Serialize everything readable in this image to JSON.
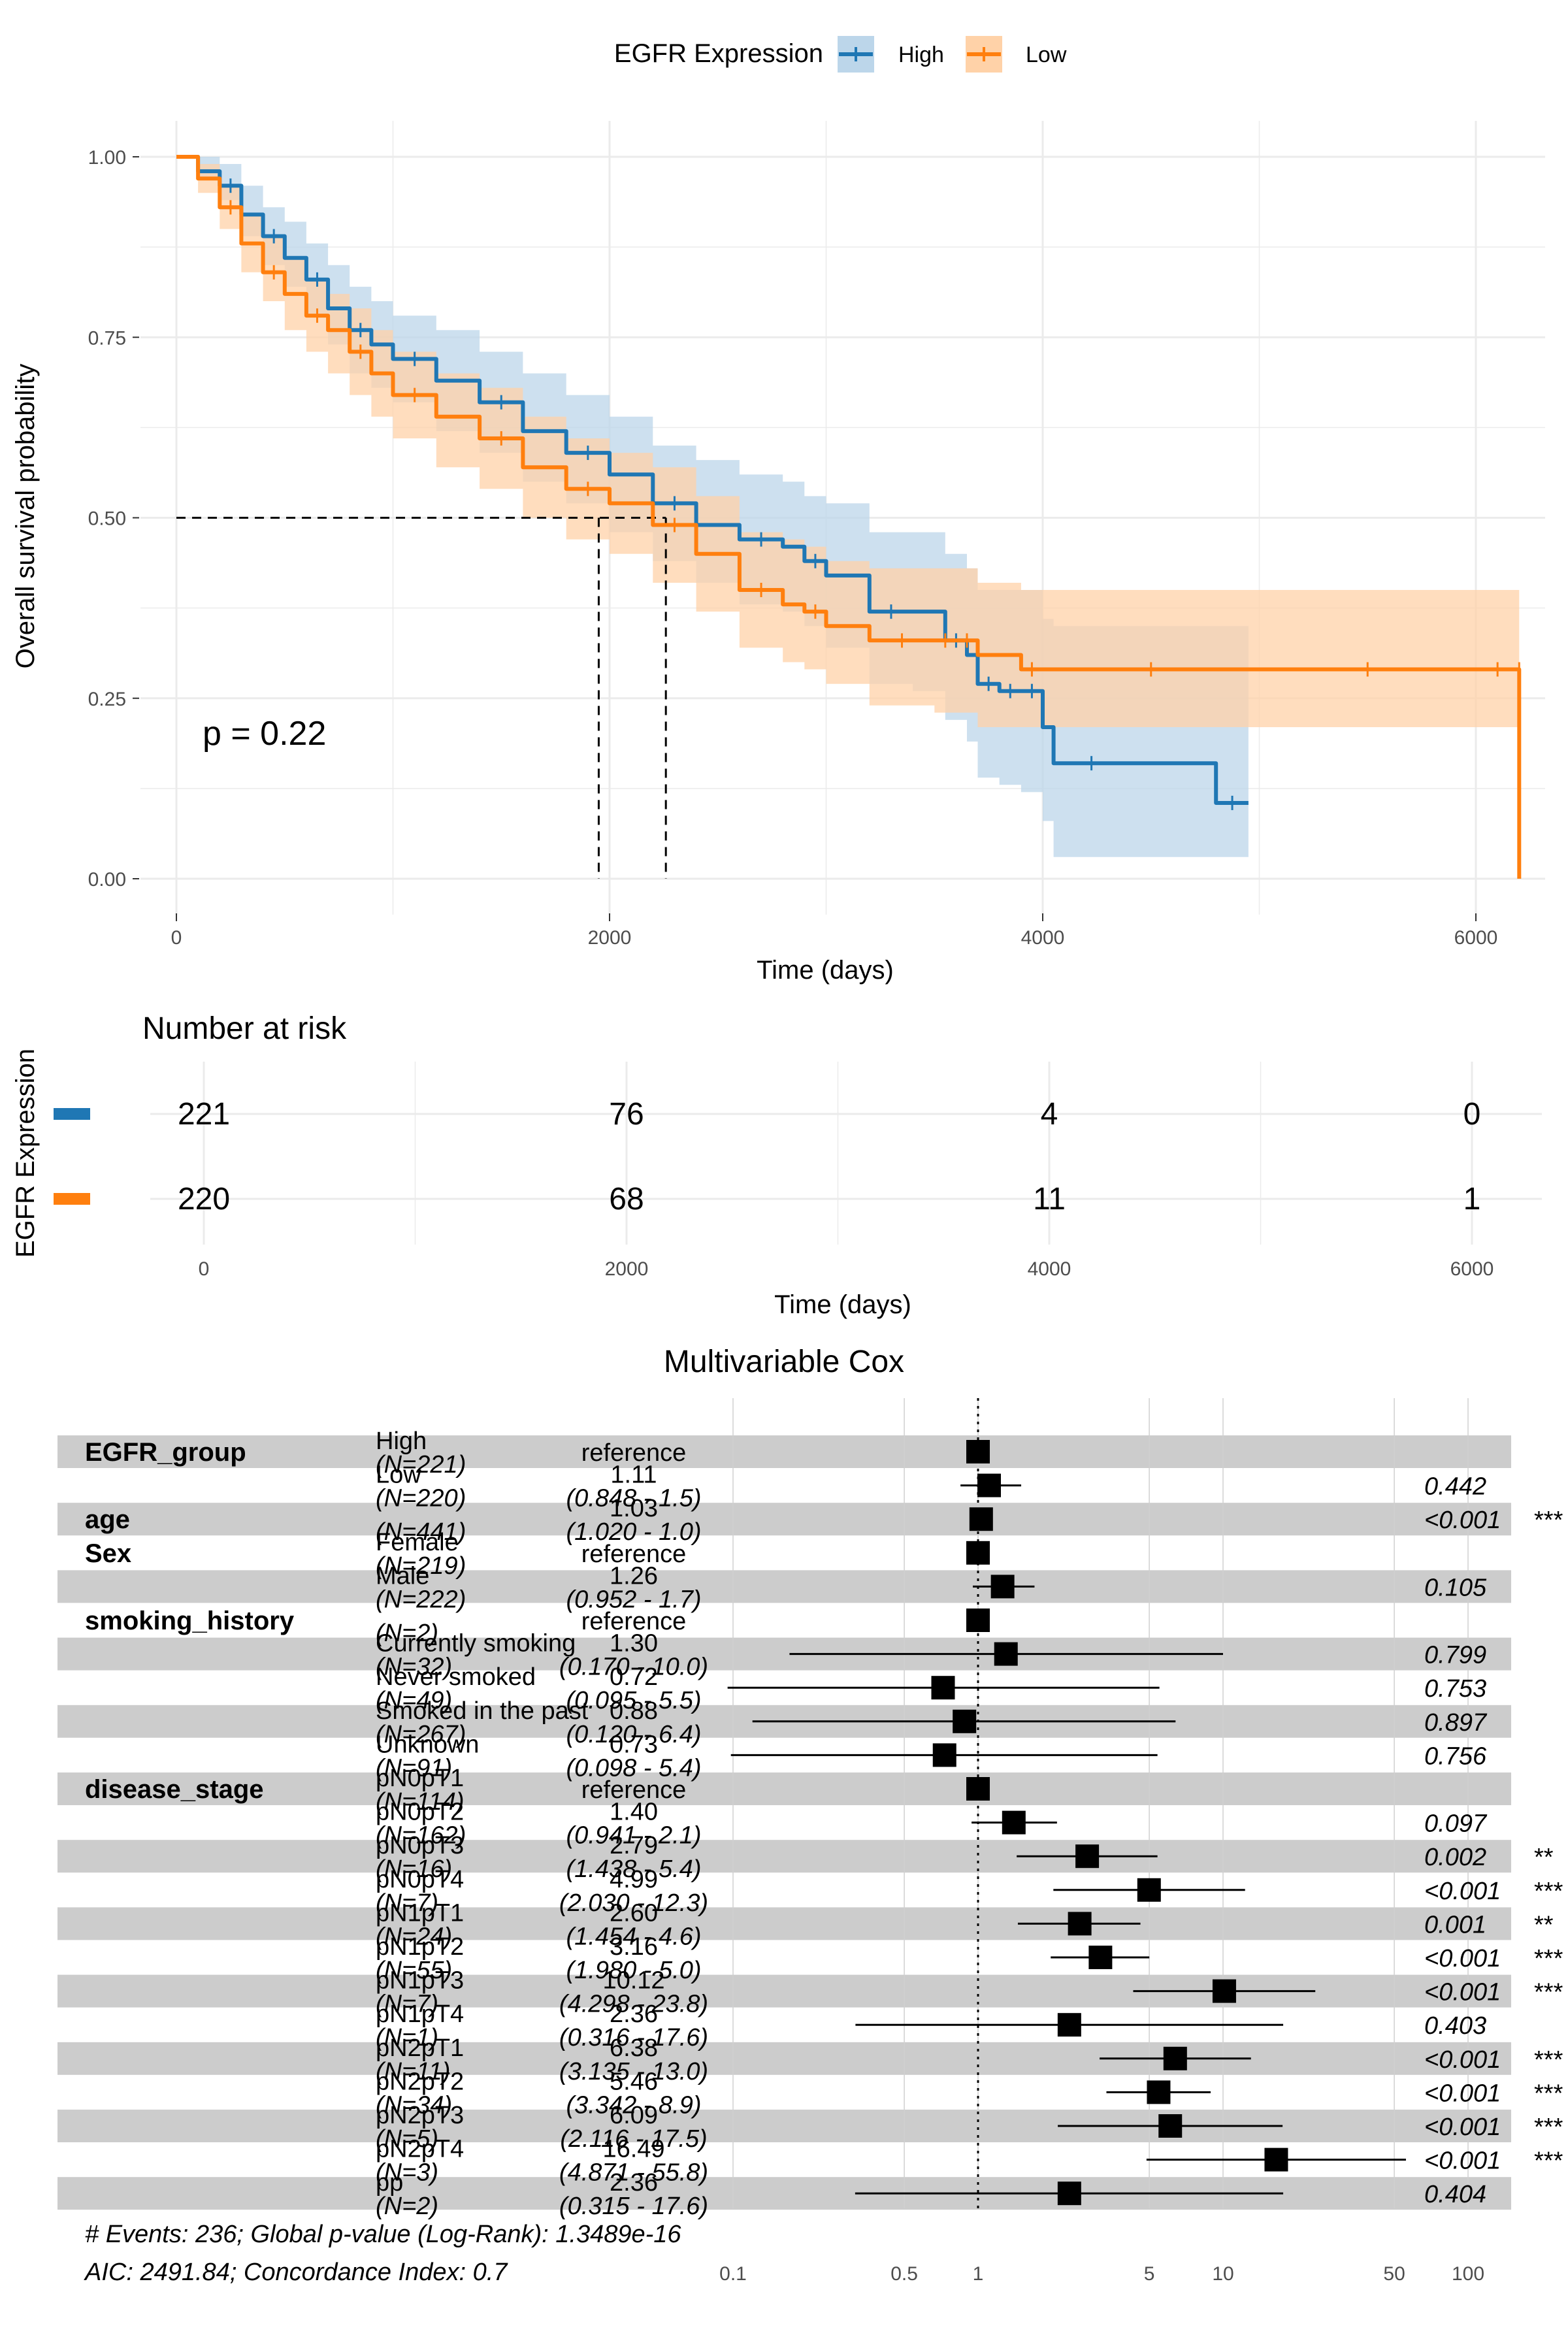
{
  "colors": {
    "high": "#1f77b4",
    "low": "#ff7f0e",
    "high_band": "#bcd6ea",
    "low_band": "#ffd2a8",
    "stripe": "#cccccc"
  },
  "km": {
    "legend": {
      "title": "EGFR Expression",
      "items": [
        "High",
        "Low"
      ]
    },
    "ylabel": "Overall survival probability",
    "xlabel": "Time (days)",
    "pvalue": "p = 0.22",
    "x_ticks": [
      "0",
      "2000",
      "4000",
      "6000"
    ],
    "y_ticks": [
      "0.00",
      "0.25",
      "0.50",
      "0.75",
      "1.00"
    ]
  },
  "risk": {
    "title": "Number at risk",
    "ylabel": "EGFR Expression",
    "xlabel": "Time (days)",
    "x_ticks": [
      "0",
      "2000",
      "4000",
      "6000"
    ],
    "rows": [
      {
        "group": "High",
        "counts": [
          "221",
          "76",
          "4",
          "0"
        ]
      },
      {
        "group": "Low",
        "counts": [
          "220",
          "68",
          "11",
          "1"
        ]
      }
    ]
  },
  "forest": {
    "title": "Multivariable Cox",
    "x_ticks": [
      "0.1",
      "0.5",
      "1",
      "5",
      "10",
      "50",
      "100"
    ],
    "footer1": "# Events: 236; Global p-value (Log-Rank): 1.3489e-16",
    "footer2": "AIC: 2491.84; Concordance Index: 0.7"
  },
  "chart_data": [
    {
      "type": "line",
      "title": "",
      "xlabel": "Time (days)",
      "ylabel": "Overall survival probability",
      "xlim": [
        0,
        6200
      ],
      "ylim": [
        0,
        1
      ],
      "grid": true,
      "legend": "top",
      "annotation": "p = 0.22",
      "median_survival": {
        "High": 2260,
        "Low": 1950
      },
      "series": [
        {
          "name": "High",
          "x": [
            0,
            100,
            200,
            300,
            400,
            500,
            600,
            700,
            800,
            900,
            1000,
            1200,
            1400,
            1600,
            1800,
            2000,
            2200,
            2400,
            2600,
            2800,
            2900,
            3000,
            3200,
            3400,
            3550,
            3650,
            3700,
            3800,
            3900,
            4000,
            4050,
            4400,
            4800,
            4950
          ],
          "y": [
            1.0,
            0.98,
            0.96,
            0.92,
            0.89,
            0.86,
            0.83,
            0.79,
            0.76,
            0.74,
            0.72,
            0.69,
            0.66,
            0.62,
            0.59,
            0.56,
            0.52,
            0.49,
            0.47,
            0.46,
            0.44,
            0.42,
            0.37,
            0.37,
            0.33,
            0.31,
            0.27,
            0.26,
            0.26,
            0.21,
            0.16,
            0.16,
            0.105,
            0.105
          ],
          "ci_low": [
            1.0,
            0.97,
            0.94,
            0.89,
            0.85,
            0.82,
            0.78,
            0.74,
            0.7,
            0.68,
            0.66,
            0.62,
            0.59,
            0.55,
            0.52,
            0.48,
            0.44,
            0.41,
            0.38,
            0.37,
            0.35,
            0.32,
            0.27,
            0.26,
            0.22,
            0.19,
            0.14,
            0.13,
            0.12,
            0.08,
            0.03,
            0.03,
            0.03,
            0.03
          ],
          "ci_high": [
            1.0,
            1.0,
            0.99,
            0.96,
            0.93,
            0.91,
            0.88,
            0.85,
            0.82,
            0.8,
            0.78,
            0.76,
            0.73,
            0.7,
            0.67,
            0.64,
            0.6,
            0.58,
            0.56,
            0.55,
            0.53,
            0.52,
            0.48,
            0.48,
            0.45,
            0.43,
            0.4,
            0.4,
            0.4,
            0.36,
            0.35,
            0.35,
            0.35,
            0.35
          ]
        },
        {
          "name": "Low",
          "x": [
            0,
            100,
            200,
            300,
            400,
            500,
            600,
            700,
            800,
            900,
            1000,
            1200,
            1400,
            1600,
            1800,
            2000,
            2200,
            2400,
            2600,
            2800,
            2900,
            3000,
            3200,
            3500,
            3600,
            3700,
            3900,
            4000,
            5000,
            6000,
            6200,
            6200
          ],
          "y": [
            1.0,
            0.97,
            0.93,
            0.88,
            0.84,
            0.81,
            0.78,
            0.76,
            0.73,
            0.7,
            0.67,
            0.64,
            0.61,
            0.57,
            0.54,
            0.52,
            0.49,
            0.45,
            0.4,
            0.38,
            0.37,
            0.35,
            0.33,
            0.33,
            0.33,
            0.31,
            0.29,
            0.29,
            0.29,
            0.29,
            0.29,
            0.0
          ],
          "ci_low": [
            1.0,
            0.95,
            0.9,
            0.84,
            0.8,
            0.76,
            0.73,
            0.7,
            0.67,
            0.64,
            0.61,
            0.57,
            0.54,
            0.5,
            0.47,
            0.45,
            0.41,
            0.37,
            0.32,
            0.3,
            0.29,
            0.27,
            0.24,
            0.23,
            0.23,
            0.21,
            0.21,
            0.21,
            0.21,
            0.21,
            0.21,
            0.21
          ],
          "ci_high": [
            1.0,
            0.99,
            0.96,
            0.92,
            0.89,
            0.86,
            0.83,
            0.81,
            0.79,
            0.76,
            0.73,
            0.7,
            0.68,
            0.64,
            0.61,
            0.59,
            0.57,
            0.53,
            0.48,
            0.47,
            0.46,
            0.44,
            0.43,
            0.43,
            0.43,
            0.41,
            0.4,
            0.4,
            0.4,
            0.4,
            0.4,
            0.4
          ]
        }
      ]
    },
    {
      "type": "table",
      "title": "Number at risk",
      "xlabel": "Time (days)",
      "ylabel": "EGFR Expression",
      "times": [
        0,
        2000,
        4000,
        6000
      ],
      "series": [
        {
          "name": "High",
          "values": [
            221,
            76,
            4,
            0
          ]
        },
        {
          "name": "Low",
          "values": [
            220,
            68,
            11,
            1
          ]
        }
      ]
    },
    {
      "type": "scatter",
      "title": "Multivariable Cox",
      "x_scale": "log",
      "xlim": [
        0.1,
        100
      ],
      "reference_line": 1,
      "rows": [
        {
          "variable": "EGFR_group",
          "level": "High",
          "n": "(N=221)",
          "estimate": "reference",
          "ci": "",
          "p": "",
          "sig": "",
          "hr": 1,
          "lo": null,
          "hi": null
        },
        {
          "variable": "",
          "level": "Low",
          "n": "(N=220)",
          "estimate": "1.11",
          "ci": "(0.848 - 1.5)",
          "p": "0.442",
          "sig": "",
          "hr": 1.11,
          "lo": 0.848,
          "hi": 1.5
        },
        {
          "variable": "age",
          "level": "",
          "n": "(N=441)",
          "estimate": "1.03",
          "ci": "(1.020 - 1.0)",
          "p": "<0.001",
          "sig": "***",
          "hr": 1.03,
          "lo": 1.02,
          "hi": 1.04
        },
        {
          "variable": "Sex",
          "level": "Female",
          "n": "(N=219)",
          "estimate": "reference",
          "ci": "",
          "p": "",
          "sig": "",
          "hr": 1,
          "lo": null,
          "hi": null
        },
        {
          "variable": "",
          "level": "Male",
          "n": "(N=222)",
          "estimate": "1.26",
          "ci": "(0.952 - 1.7)",
          "p": "0.105",
          "sig": "",
          "hr": 1.26,
          "lo": 0.952,
          "hi": 1.7
        },
        {
          "variable": "smoking_history",
          "level": "",
          "n": "(N=2)",
          "estimate": "reference",
          "ci": "",
          "p": "",
          "sig": "",
          "hr": 1,
          "lo": null,
          "hi": null
        },
        {
          "variable": "",
          "level": "Currently smoking",
          "n": "(N=32)",
          "estimate": "1.30",
          "ci": "(0.170 - 10.0)",
          "p": "0.799",
          "sig": "",
          "hr": 1.3,
          "lo": 0.17,
          "hi": 10.0
        },
        {
          "variable": "",
          "level": "Never smoked",
          "n": "(N=49)",
          "estimate": "0.72",
          "ci": "(0.095 - 5.5)",
          "p": "0.753",
          "sig": "",
          "hr": 0.72,
          "lo": 0.095,
          "hi": 5.5
        },
        {
          "variable": "",
          "level": "Smoked in the past",
          "n": "(N=267)",
          "estimate": "0.88",
          "ci": "(0.120 - 6.4)",
          "p": "0.897",
          "sig": "",
          "hr": 0.88,
          "lo": 0.12,
          "hi": 6.4
        },
        {
          "variable": "",
          "level": "Unknown",
          "n": "(N=91)",
          "estimate": "0.73",
          "ci": "(0.098 - 5.4)",
          "p": "0.756",
          "sig": "",
          "hr": 0.73,
          "lo": 0.098,
          "hi": 5.4
        },
        {
          "variable": "disease_stage",
          "level": "pN0pT1",
          "n": "(N=114)",
          "estimate": "reference",
          "ci": "",
          "p": "",
          "sig": "",
          "hr": 1,
          "lo": null,
          "hi": null
        },
        {
          "variable": "",
          "level": "pN0pT2",
          "n": "(N=162)",
          "estimate": "1.40",
          "ci": "(0.941 - 2.1)",
          "p": "0.097",
          "sig": "",
          "hr": 1.4,
          "lo": 0.941,
          "hi": 2.1
        },
        {
          "variable": "",
          "level": "pN0pT3",
          "n": "(N=16)",
          "estimate": "2.79",
          "ci": "(1.438 - 5.4)",
          "p": "0.002",
          "sig": "**",
          "hr": 2.79,
          "lo": 1.438,
          "hi": 5.4
        },
        {
          "variable": "",
          "level": "pN0pT4",
          "n": "(N=7)",
          "estimate": "4.99",
          "ci": "(2.030 - 12.3)",
          "p": "<0.001",
          "sig": "***",
          "hr": 4.99,
          "lo": 2.03,
          "hi": 12.3
        },
        {
          "variable": "",
          "level": "pN1pT1",
          "n": "(N=24)",
          "estimate": "2.60",
          "ci": "(1.454 - 4.6)",
          "p": "0.001",
          "sig": "**",
          "hr": 2.6,
          "lo": 1.454,
          "hi": 4.6
        },
        {
          "variable": "",
          "level": "pN1pT2",
          "n": "(N=55)",
          "estimate": "3.16",
          "ci": "(1.980 - 5.0)",
          "p": "<0.001",
          "sig": "***",
          "hr": 3.16,
          "lo": 1.98,
          "hi": 5.0
        },
        {
          "variable": "",
          "level": "pN1pT3",
          "n": "(N=7)",
          "estimate": "10.12",
          "ci": "(4.298 - 23.8)",
          "p": "<0.001",
          "sig": "***",
          "hr": 10.12,
          "lo": 4.298,
          "hi": 23.8
        },
        {
          "variable": "",
          "level": "pN1pT4",
          "n": "(N=1)",
          "estimate": "2.36",
          "ci": "(0.316 - 17.6)",
          "p": "0.403",
          "sig": "",
          "hr": 2.36,
          "lo": 0.316,
          "hi": 17.6
        },
        {
          "variable": "",
          "level": "pN2pT1",
          "n": "(N=11)",
          "estimate": "6.38",
          "ci": "(3.135 - 13.0)",
          "p": "<0.001",
          "sig": "***",
          "hr": 6.38,
          "lo": 3.135,
          "hi": 13.0
        },
        {
          "variable": "",
          "level": "pN2pT2",
          "n": "(N=34)",
          "estimate": "5.46",
          "ci": "(3.342 - 8.9)",
          "p": "<0.001",
          "sig": "***",
          "hr": 5.46,
          "lo": 3.342,
          "hi": 8.9
        },
        {
          "variable": "",
          "level": "pN2pT3",
          "n": "(N=5)",
          "estimate": "6.09",
          "ci": "(2.116 - 17.5)",
          "p": "<0.001",
          "sig": "***",
          "hr": 6.09,
          "lo": 2.116,
          "hi": 17.5
        },
        {
          "variable": "",
          "level": "pN2pT4",
          "n": "(N=3)",
          "estimate": "16.49",
          "ci": "(4.871 - 55.8)",
          "p": "<0.001",
          "sig": "***",
          "hr": 16.49,
          "lo": 4.871,
          "hi": 55.8
        },
        {
          "variable": "",
          "level": "pp",
          "n": "(N=2)",
          "estimate": "2.36",
          "ci": "(0.315 - 17.6)",
          "p": "0.404",
          "sig": "",
          "hr": 2.36,
          "lo": 0.315,
          "hi": 17.6
        }
      ]
    }
  ]
}
